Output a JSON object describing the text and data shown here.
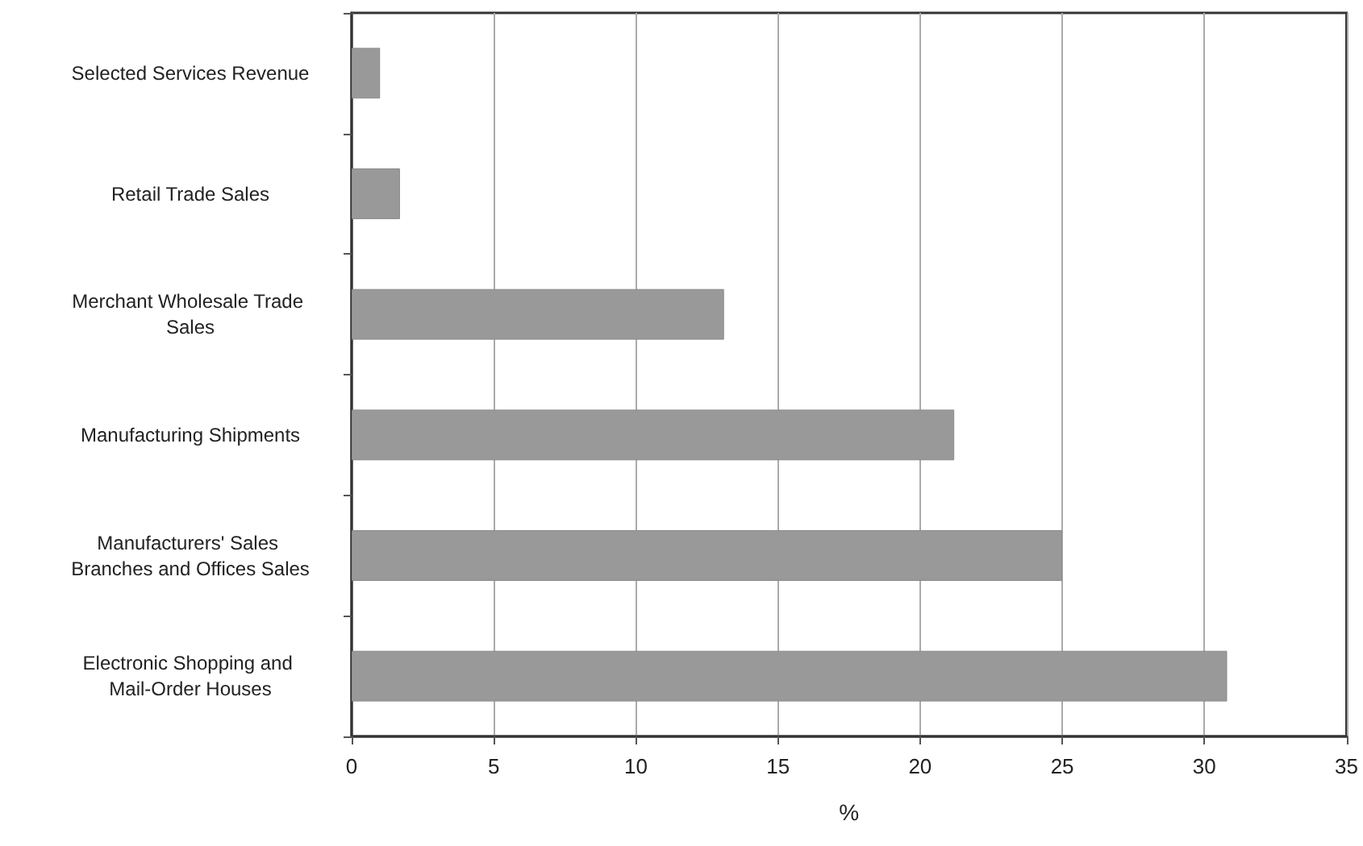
{
  "chart_data": {
    "type": "bar",
    "orientation": "horizontal",
    "xlabel": "%",
    "categories": [
      "Selected Services Revenue",
      "Retail Trade Sales",
      "Merchant Wholesale Trade Sales",
      "Manufacturing Shipments",
      "Manufacturers' Sales Branches and Offices Sales",
      "Electronic Shopping and Mail-Order Houses"
    ],
    "values": [
      1.0,
      1.7,
      13.1,
      21.2,
      25.0,
      30.8
    ],
    "color": "#999999",
    "xlim": [
      0,
      35
    ],
    "xticks": [
      0,
      5,
      10,
      15,
      20,
      25,
      30,
      35
    ],
    "grid": "x"
  }
}
